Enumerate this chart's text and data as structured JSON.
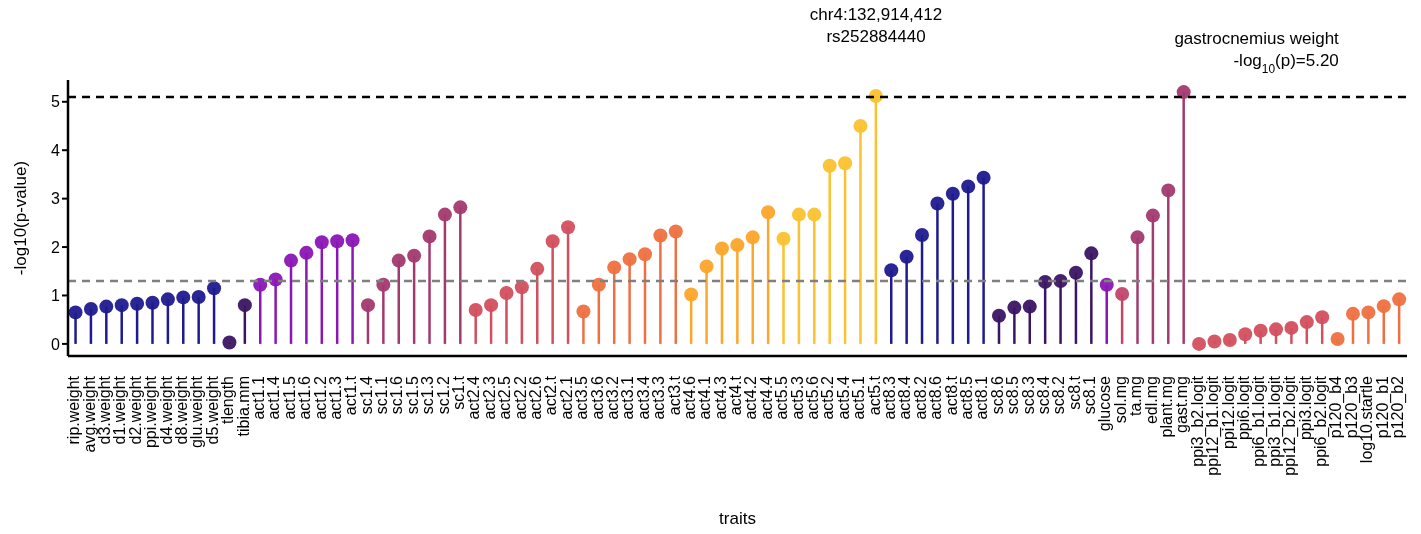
{
  "chart_data": {
    "type": "lollipop",
    "xlabel": "traits",
    "ylabel": "-log10(p-value)",
    "categories": [
      "rip.weight",
      "avg.weight",
      "d3.weight",
      "d1.weight",
      "d2.weight",
      "ppi.weight",
      "d4.weight",
      "d8.weight",
      "glu.weight",
      "d5.weight",
      "tlength",
      "tibia.mm",
      "act1.1",
      "act1.4",
      "act1.5",
      "act1.6",
      "act1.2",
      "act1.3",
      "act1.t",
      "sc1.4",
      "sc1.1",
      "sc1.6",
      "sc1.5",
      "sc1.3",
      "sc1.2",
      "sc1.t",
      "act2.4",
      "act2.3",
      "act2.5",
      "act2.2",
      "act2.6",
      "act2.t",
      "act2.1",
      "act3.5",
      "act3.6",
      "act3.2",
      "act3.1",
      "act3.4",
      "act3.3",
      "act3.t",
      "act4.6",
      "act4.1",
      "act4.3",
      "act4.t",
      "act4.2",
      "act4.4",
      "act5.5",
      "act5.3",
      "act5.6",
      "act5.2",
      "act5.4",
      "act5.1",
      "act5.t",
      "act8.3",
      "act8.4",
      "act8.2",
      "act8.6",
      "act8.t",
      "act8.5",
      "act8.1",
      "sc8.6",
      "sc8.5",
      "sc8.3",
      "sc8.4",
      "sc8.2",
      "sc8.t",
      "sc8.1",
      "glucose",
      "sol.mg",
      "ta.mg",
      "edl.mg",
      "plant.mg",
      "gast.mg",
      "ppi3_b2.logit",
      "ppi12_b1.logit",
      "ppi12.logit",
      "ppi6.logit",
      "ppi6_b1.logit",
      "ppi3_b1.logit",
      "ppi12_b2.logit",
      "ppi3.logit",
      "ppi6_b2.logit",
      "p120_b4",
      "p120_b3",
      "log10.startle",
      "p120_b1",
      "p120_b2"
    ],
    "values": [
      0.65,
      0.72,
      0.77,
      0.8,
      0.83,
      0.85,
      0.92,
      0.96,
      0.97,
      1.15,
      0.03,
      0.8,
      1.22,
      1.33,
      1.72,
      1.88,
      2.1,
      2.12,
      2.14,
      0.8,
      1.22,
      1.72,
      1.82,
      2.22,
      2.67,
      2.82,
      0.7,
      0.8,
      1.05,
      1.17,
      1.55,
      2.12,
      2.41,
      0.67,
      1.22,
      1.58,
      1.75,
      1.85,
      2.24,
      2.32,
      1.02,
      1.6,
      1.97,
      2.04,
      2.2,
      2.72,
      2.17,
      2.67,
      2.67,
      3.68,
      3.73,
      4.5,
      5.12,
      1.52,
      1.8,
      2.25,
      2.9,
      3.1,
      3.25,
      3.43,
      0.58,
      0.75,
      0.77,
      1.28,
      1.3,
      1.47,
      1.87,
      1.22,
      1.03,
      2.2,
      2.65,
      3.17,
      5.2,
      0.0,
      0.05,
      0.08,
      0.2,
      0.27,
      0.3,
      0.33,
      0.45,
      0.55,
      0.1,
      0.62,
      0.65,
      0.78,
      0.92
    ],
    "colors": [
      "#1f1a8f",
      "#1f1a8f",
      "#1f1a8f",
      "#1f1a8f",
      "#1f1a8f",
      "#1f1a8f",
      "#1f1a8f",
      "#1f1a8f",
      "#1f1a8f",
      "#1f1a8f",
      "#3b1563",
      "#3b1563",
      "#8a16b5",
      "#8a16b5",
      "#8a16b5",
      "#8a16b5",
      "#8a16b5",
      "#8a16b5",
      "#8a16b5",
      "#a33a6e",
      "#a33a6e",
      "#a33a6e",
      "#a33a6e",
      "#a33a6e",
      "#a33a6e",
      "#a33a6e",
      "#d24f5e",
      "#d24f5e",
      "#d24f5e",
      "#d24f5e",
      "#d24f5e",
      "#d24f5e",
      "#d24f5e",
      "#ee7040",
      "#ee7040",
      "#ee7040",
      "#ee7040",
      "#ee7040",
      "#ee7040",
      "#ee7040",
      "#fba72a",
      "#fba72a",
      "#fba72a",
      "#fba72a",
      "#fba72a",
      "#fba72a",
      "#fbc230",
      "#fbc230",
      "#fbc230",
      "#fbc230",
      "#fbc230",
      "#fbc230",
      "#fbc230",
      "#1f1a8f",
      "#1f1a8f",
      "#1f1a8f",
      "#1f1a8f",
      "#1f1a8f",
      "#1f1a8f",
      "#1f1a8f",
      "#3b1563",
      "#3b1563",
      "#3b1563",
      "#3b1563",
      "#3b1563",
      "#3b1563",
      "#3b1563",
      "#8a16b5",
      "#c2456a",
      "#a33a6e",
      "#a33a6e",
      "#a33a6e",
      "#a33a6e",
      "#d24f5e",
      "#d24f5e",
      "#d24f5e",
      "#d24f5e",
      "#d24f5e",
      "#d24f5e",
      "#d24f5e",
      "#d24f5e",
      "#d24f5e",
      "#ee7040",
      "#ee7040",
      "#ee7040",
      "#ee7040",
      "#ee7040"
    ],
    "ylim": [
      -0.25,
      5.45
    ],
    "yticks": [
      0,
      1,
      2,
      3,
      4,
      5
    ],
    "grid": false,
    "legend": false,
    "marker": "circle",
    "ref_lines": [
      {
        "axis": "y",
        "value": 5.1,
        "color": "#000000",
        "line_style": "dashed"
      },
      {
        "axis": "y",
        "value": 1.3,
        "color": "#808080",
        "line_style": "dashed"
      }
    ],
    "annotations": [
      {
        "text": "chr4:132,914,412\nrs252884440",
        "x": "act5.t",
        "y": 5.12
      },
      {
        "text": "gastrocnemius weight\n-log$_{10}$(p)=5.20",
        "x": "gast.mg",
        "y": 5.2
      }
    ]
  }
}
